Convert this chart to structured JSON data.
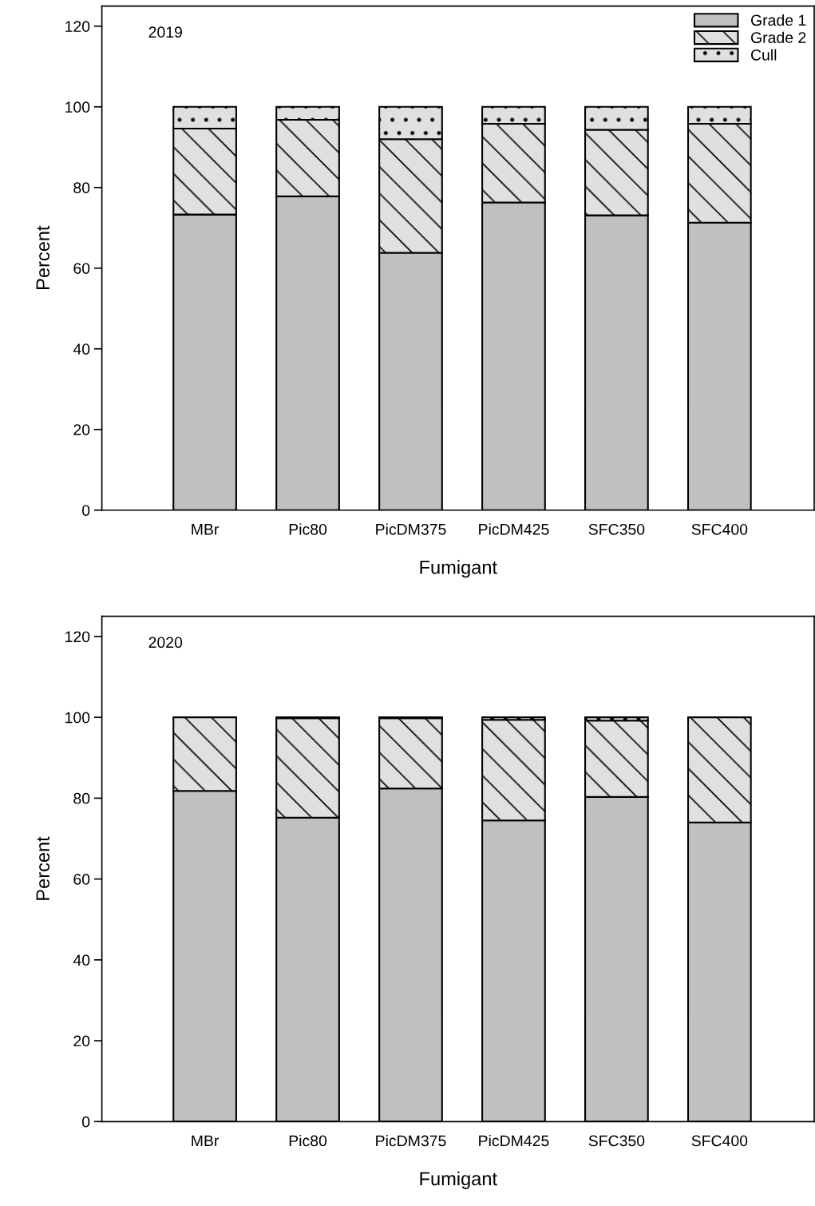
{
  "chart_data": [
    {
      "type": "bar",
      "title": "2019",
      "xlabel": "Fumigant",
      "ylabel": "Percent",
      "stacked": true,
      "categories": [
        "MBr",
        "Pic80",
        "PicDM375",
        "PicDM425",
        "SFC350",
        "SFC400"
      ],
      "series": [
        {
          "name": "Grade 1",
          "color": "#c0c0c0",
          "values": [
            73.3,
            77.8,
            63.8,
            76.3,
            73.1,
            71.3
          ]
        },
        {
          "name": "Grade 2",
          "color": "#e0e0e0",
          "values": [
            21.3,
            19.0,
            28.2,
            19.5,
            21.2,
            24.5
          ]
        },
        {
          "name": "Cull",
          "color": "#e0e0e0",
          "values": [
            5.4,
            3.2,
            8.0,
            4.2,
            5.7,
            4.2
          ]
        }
      ],
      "ylim": [
        0,
        125
      ],
      "yticks": [
        0,
        20,
        40,
        60,
        80,
        100,
        120
      ],
      "grid": false,
      "legend": "top right"
    },
    {
      "type": "bar",
      "title": "2020",
      "xlabel": "Fumigant",
      "ylabel": "Percent",
      "stacked": true,
      "categories": [
        "MBr",
        "Pic80",
        "PicDM375",
        "PicDM425",
        "SFC350",
        "SFC400"
      ],
      "series": [
        {
          "color": "#c0c0c0",
          "values": [
            81.8,
            75.2,
            82.4,
            74.5,
            80.3,
            74.0
          ]
        },
        {
          "color": "#e0e0e0",
          "values": [
            18.2,
            24.6,
            17.4,
            24.9,
            18.9,
            26.0
          ]
        },
        {
          "color": "#e0e0e0",
          "values": [
            0,
            0.2,
            0.2,
            0.6,
            0.8,
            0
          ]
        }
      ],
      "ylim": [
        0,
        125
      ],
      "yticks": [
        0,
        20,
        40,
        60,
        80,
        100,
        120
      ],
      "grid": false,
      "legend": false
    }
  ]
}
